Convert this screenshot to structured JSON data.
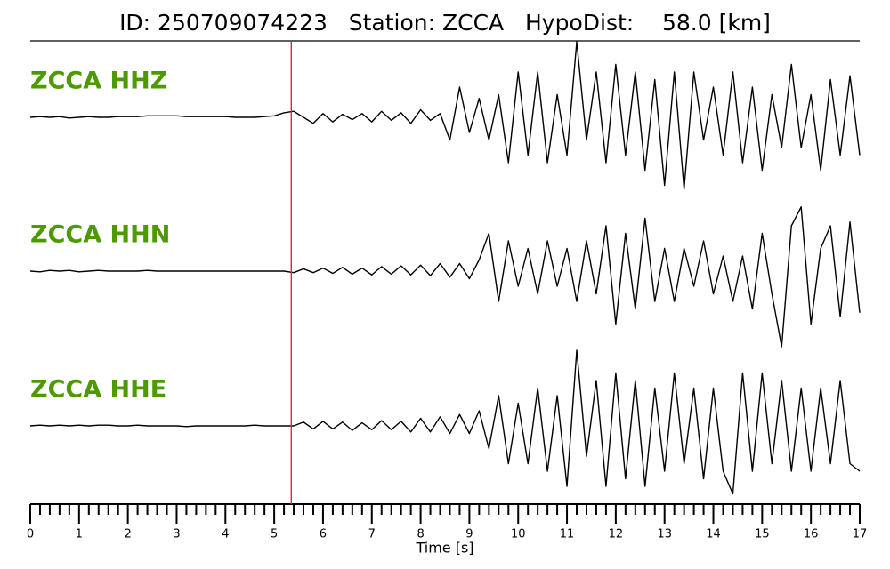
{
  "chart_data": {
    "type": "line",
    "title": "ID: 250709074223   Station: ZCCA   HypoDist:    58.0 [km]",
    "xlabel": "Time [s]",
    "xlim": [
      0,
      17
    ],
    "xticks": [
      0,
      1,
      2,
      3,
      4,
      5,
      6,
      7,
      8,
      9,
      10,
      11,
      12,
      13,
      14,
      15,
      16,
      17
    ],
    "xminor_per_major": 5,
    "ylim": [
      -1,
      1
    ],
    "label_color": "#4c9900",
    "markers": [
      {
        "x": 5.35,
        "color": "#e8262a"
      }
    ],
    "x": [
      0,
      0.2,
      0.4,
      0.6,
      0.8,
      1,
      1.2,
      1.4,
      1.6,
      1.8,
      2,
      2.2,
      2.4,
      2.6,
      2.8,
      3,
      3.2,
      3.4,
      3.6,
      3.8,
      4,
      4.2,
      4.4,
      4.6,
      4.8,
      5,
      5.2,
      5.4,
      5.6,
      5.8,
      6,
      6.2,
      6.4,
      6.6,
      6.8,
      7,
      7.2,
      7.4,
      7.6,
      7.8,
      8,
      8.2,
      8.4,
      8.6,
      8.8,
      9,
      9.2,
      9.4,
      9.6,
      9.8,
      10,
      10.2,
      10.4,
      10.6,
      10.8,
      11,
      11.2,
      11.4,
      11.6,
      11.8,
      12,
      12.2,
      12.4,
      12.6,
      12.8,
      13,
      13.2,
      13.4,
      13.6,
      13.8,
      14,
      14.2,
      14.4,
      14.6,
      14.8,
      15,
      15.2,
      15.4,
      15.6,
      15.8,
      16,
      16.2,
      16.4,
      16.6,
      16.8,
      17
    ],
    "series": [
      {
        "name": "ZCCA HHZ",
        "color": "#000000",
        "values": [
          0,
          0.01,
          0,
          0.01,
          -0.01,
          0,
          0.01,
          0,
          0,
          0.01,
          0.01,
          0.01,
          0.02,
          0.02,
          0.02,
          0.02,
          0.01,
          0.01,
          0.01,
          0.01,
          0.01,
          0,
          0,
          0,
          0.01,
          0.02,
          0.06,
          0.08,
          0,
          -0.08,
          0.05,
          -0.06,
          0.04,
          -0.03,
          0.05,
          -0.06,
          0.08,
          -0.04,
          0.06,
          -0.08,
          0.1,
          -0.04,
          0.05,
          -0.3,
          0.4,
          -0.2,
          0.25,
          -0.3,
          0.3,
          -0.6,
          0.6,
          -0.5,
          0.6,
          -0.6,
          0.3,
          -0.5,
          1.0,
          -0.3,
          0.6,
          -0.6,
          0.7,
          -0.5,
          0.6,
          -0.7,
          0.5,
          -0.9,
          0.6,
          -0.95,
          0.6,
          -0.3,
          0.4,
          -0.5,
          0.6,
          -0.6,
          0.4,
          -0.7,
          0.3,
          -0.4,
          0.7,
          -0.4,
          0.3,
          -0.7,
          0.5,
          -0.5,
          0.55,
          -0.5
        ]
      },
      {
        "name": "ZCCA HHN",
        "color": "#000000",
        "values": [
          0,
          -0.01,
          0.01,
          0,
          0.01,
          -0.01,
          0,
          0.01,
          0,
          0,
          0,
          0,
          0.01,
          0,
          0,
          0,
          0,
          0,
          0,
          0,
          0,
          0,
          0,
          0,
          0,
          0,
          0,
          -0.02,
          0.03,
          -0.02,
          0.04,
          -0.03,
          0.05,
          -0.04,
          0.04,
          -0.05,
          0.06,
          -0.04,
          0.07,
          -0.05,
          0.08,
          -0.06,
          0.1,
          -0.08,
          0.1,
          -0.1,
          0.15,
          0.5,
          -0.4,
          0.4,
          -0.2,
          0.3,
          -0.3,
          0.4,
          -0.2,
          0.3,
          -0.4,
          0.4,
          -0.3,
          0.6,
          -0.7,
          0.5,
          -0.5,
          0.7,
          -0.4,
          0.3,
          -0.4,
          0.3,
          -0.2,
          0.4,
          -0.3,
          0.2,
          -0.4,
          0.2,
          -0.5,
          0.5,
          -0.3,
          -1.0,
          0.6,
          0.85,
          -0.7,
          0.3,
          0.6,
          -0.6,
          0.65,
          -0.55
        ]
      },
      {
        "name": "ZCCA HHE",
        "color": "#000000",
        "values": [
          0,
          0.01,
          0,
          0.01,
          0,
          0.01,
          0,
          0.01,
          0.01,
          0,
          0,
          0.01,
          0,
          0,
          0,
          0,
          -0.01,
          0,
          0,
          0,
          0,
          0,
          0,
          0.01,
          0,
          0,
          0,
          0,
          0.05,
          -0.04,
          0.06,
          -0.04,
          0.05,
          -0.06,
          0.04,
          -0.05,
          0.07,
          -0.05,
          0.06,
          -0.08,
          0.1,
          -0.08,
          0.12,
          -0.1,
          0.15,
          -0.1,
          0.2,
          -0.3,
          0.4,
          -0.5,
          0.3,
          -0.5,
          0.5,
          -0.6,
          0.4,
          -0.8,
          1.0,
          -0.4,
          0.6,
          -0.8,
          0.7,
          -0.7,
          0.6,
          -0.8,
          0.5,
          -0.6,
          0.7,
          -0.5,
          0.5,
          -0.7,
          0.5,
          -0.6,
          -0.9,
          0.7,
          -0.6,
          0.7,
          -0.5,
          0.6,
          -0.6,
          0.5,
          -0.6,
          0.5,
          -0.5,
          0.6,
          -0.5,
          -0.6
        ]
      }
    ]
  }
}
